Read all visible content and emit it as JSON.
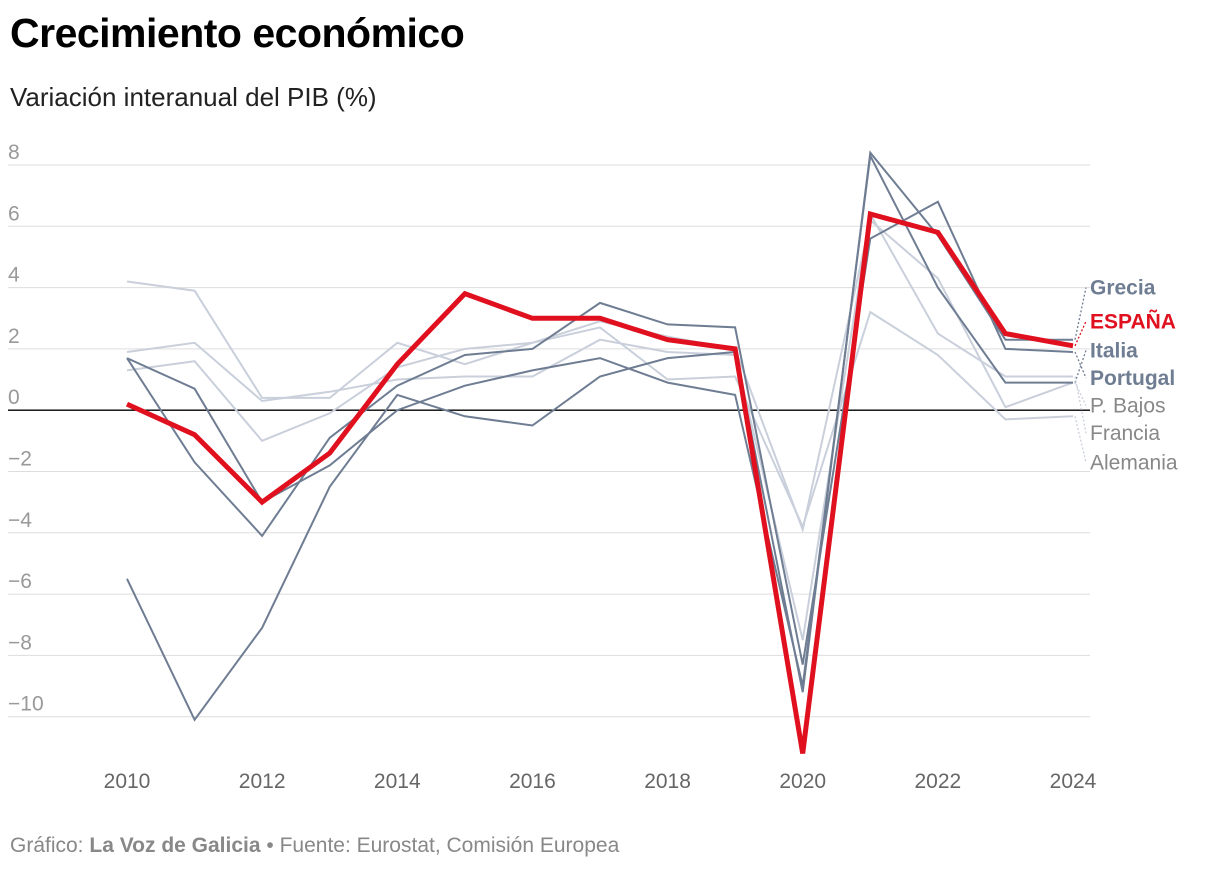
{
  "header": {
    "title": "Crecimiento económico",
    "subtitle": "Variación interanual del PIB (%)"
  },
  "footer": {
    "prefix": "Gráfico:",
    "brand": "La Voz de Galicia",
    "source": "• Fuente: Eurostat, Comisión Europea"
  },
  "colors": {
    "highlight": "#e0101f",
    "main_gray": "#6f7d93",
    "light_gray": "#c9cfdb",
    "label_light": "#888888",
    "grid": "#dddddd",
    "zero_line": "#000000",
    "tick": "#999999"
  },
  "chart_data": {
    "type": "line",
    "title": "Crecimiento económico",
    "subtitle": "Variación interanual del PIB (%)",
    "x": [
      2010,
      2011,
      2012,
      2013,
      2014,
      2015,
      2016,
      2017,
      2018,
      2019,
      2020,
      2021,
      2022,
      2023,
      2024
    ],
    "xticks": [
      "2010",
      "2012",
      "2014",
      "2016",
      "2018",
      "2020",
      "2022",
      "2024"
    ],
    "yticks": [
      "8",
      "6",
      "4",
      "2",
      "0",
      "−2",
      "−4",
      "−6",
      "−8",
      "−10"
    ],
    "ylim": [
      -11.3,
      8.6
    ],
    "grid": true,
    "legend": "direct labels at right end of lines",
    "series": [
      {
        "name": "Alemania",
        "emphasis": "light",
        "values": [
          4.2,
          3.9,
          0.4,
          0.4,
          2.2,
          1.5,
          2.2,
          2.7,
          1.0,
          1.1,
          -3.8,
          3.2,
          1.8,
          -0.3,
          -0.2
        ]
      },
      {
        "name": "Francia",
        "emphasis": "light",
        "values": [
          1.9,
          2.2,
          0.3,
          0.6,
          1.0,
          1.1,
          1.1,
          2.3,
          1.9,
          1.8,
          -7.5,
          6.4,
          2.5,
          1.1,
          1.1
        ]
      },
      {
        "name": "P. Bajos",
        "emphasis": "light",
        "values": [
          1.3,
          1.6,
          -1.0,
          -0.1,
          1.4,
          2.0,
          2.2,
          2.9,
          2.4,
          2.0,
          -3.9,
          6.2,
          4.3,
          0.1,
          0.9
        ]
      },
      {
        "name": "Portugal",
        "emphasis": "main",
        "values": [
          1.7,
          -1.7,
          -4.1,
          -0.9,
          0.8,
          1.8,
          2.0,
          3.5,
          2.8,
          2.7,
          -8.3,
          5.6,
          6.8,
          2.0,
          1.9
        ]
      },
      {
        "name": "Italia",
        "emphasis": "main",
        "values": [
          1.7,
          0.7,
          -3.0,
          -1.8,
          0.0,
          0.8,
          1.3,
          1.7,
          0.9,
          0.5,
          -9.0,
          8.3,
          4.0,
          0.9,
          0.9
        ]
      },
      {
        "name": "Grecia",
        "emphasis": "main",
        "values": [
          -5.5,
          -10.1,
          -7.1,
          -2.5,
          0.5,
          -0.2,
          -0.5,
          1.1,
          1.7,
          1.9,
          -9.2,
          8.4,
          5.7,
          2.3,
          2.3
        ]
      },
      {
        "name": "ESPAÑA",
        "emphasis": "highlight",
        "values": [
          0.2,
          -0.8,
          -3.0,
          -1.4,
          1.5,
          3.8,
          3.0,
          3.0,
          2.3,
          2.0,
          -11.2,
          6.4,
          5.8,
          2.5,
          2.1
        ]
      }
    ]
  },
  "labels": [
    {
      "name": "Grecia",
      "value": 2.3,
      "text_value": 4.0,
      "style": "main"
    },
    {
      "name": "ESPAÑA",
      "value": 2.1,
      "text_value": 2.9,
      "style": "highlight"
    },
    {
      "name": "Italia",
      "value": 0.9,
      "text_value": 1.95,
      "style": "main"
    },
    {
      "name": "Portugal",
      "value": 1.9,
      "text_value": 1.05,
      "style": "main"
    },
    {
      "name": "P. Bajos",
      "value": 0.9,
      "text_value": 0.15,
      "style": "light"
    },
    {
      "name": "Francia",
      "value": 1.1,
      "text_value": -0.75,
      "style": "light"
    },
    {
      "name": "Alemania",
      "value": -0.2,
      "text_value": -1.7,
      "style": "light"
    }
  ]
}
